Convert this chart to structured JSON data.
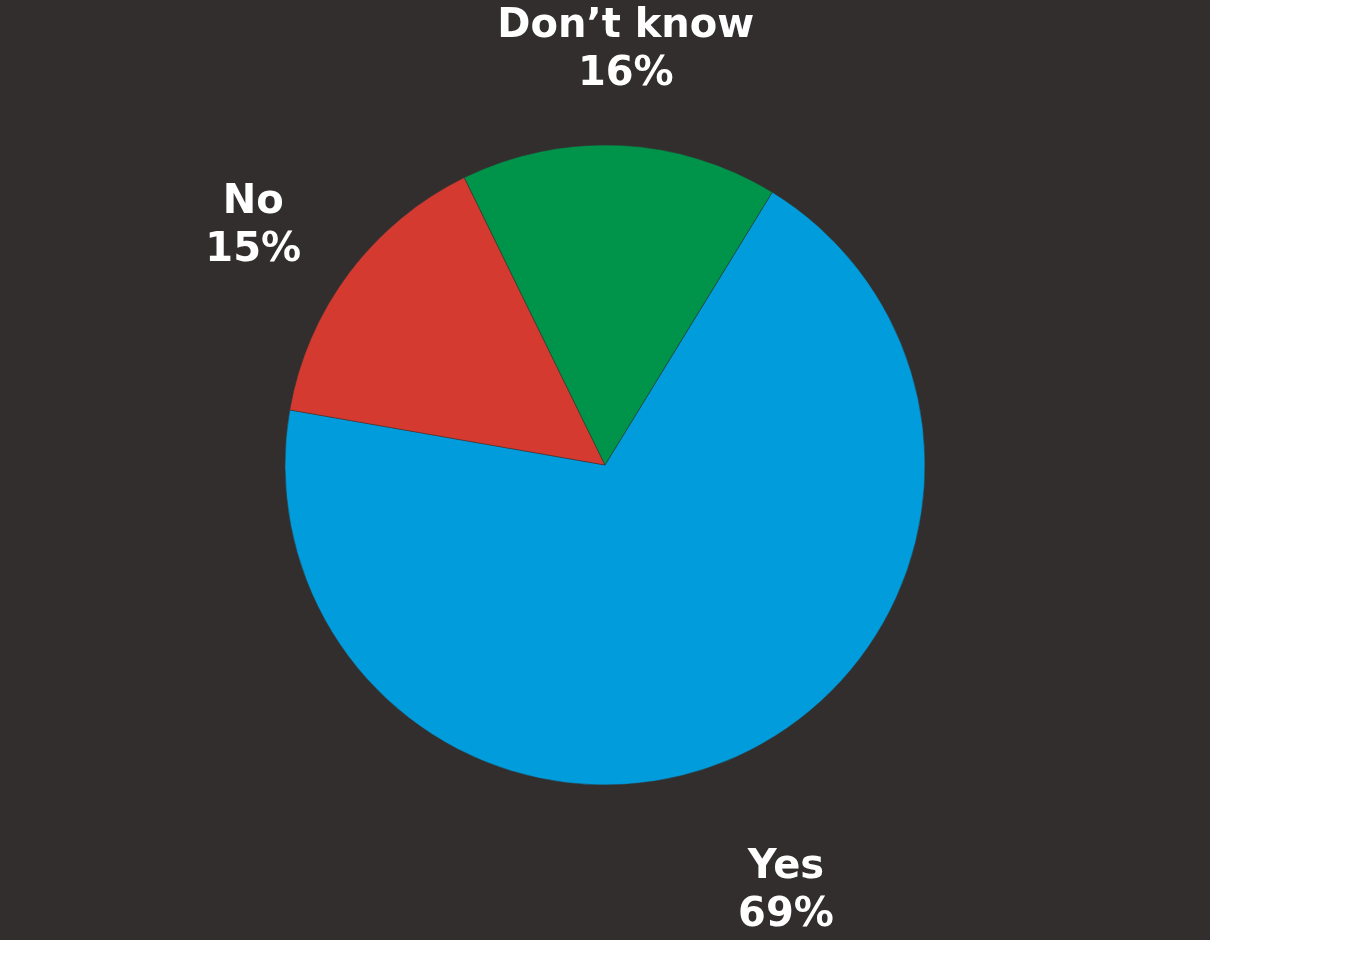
{
  "chart_data": {
    "type": "pie",
    "categories": [
      "Yes",
      "No",
      "Don’t know"
    ],
    "values": [
      69,
      15,
      16
    ],
    "colors": [
      "#009cdb",
      "#d43a2f",
      "#00934a"
    ],
    "value_labels": [
      "69%",
      "15%",
      "16%"
    ],
    "legend": false
  }
}
